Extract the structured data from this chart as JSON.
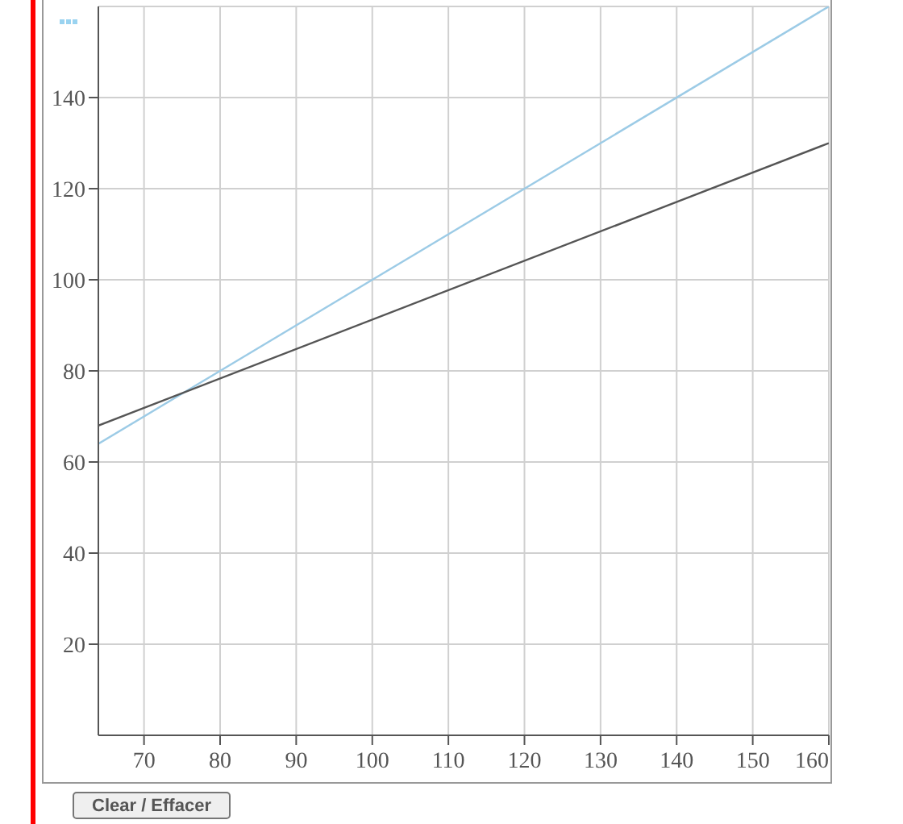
{
  "chart_data": {
    "type": "line",
    "x": [
      64,
      160
    ],
    "series": [
      {
        "color": "#9ccbe6",
        "values": [
          64,
          160
        ]
      },
      {
        "color": "#555555",
        "values": [
          68,
          130
        ]
      }
    ],
    "xlim": [
      64,
      160
    ],
    "xticks": [
      70,
      80,
      90,
      100,
      110,
      120,
      130,
      140,
      150,
      160
    ],
    "ylim": [
      0,
      160
    ],
    "yticks": [
      20,
      40,
      60,
      80,
      100,
      120,
      140
    ],
    "grid": true,
    "marker": "none",
    "line_style": "solid",
    "annotations": [
      "Clear / Effacer"
    ]
  }
}
